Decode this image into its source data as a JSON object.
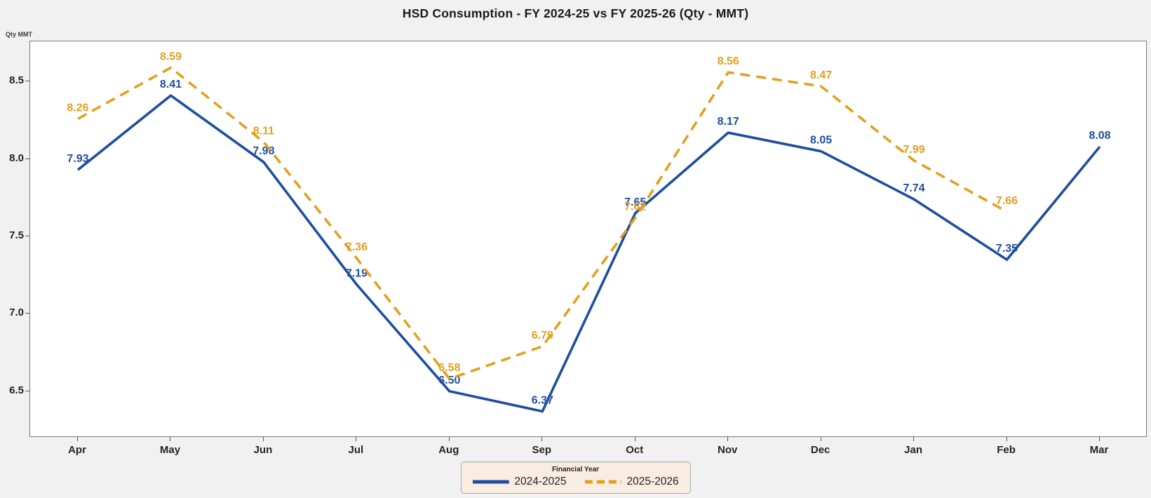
{
  "colors": {
    "background": "#f1f1f1",
    "plot_background": "#ffffff",
    "plot_border": "#7a7a7a",
    "series_2024_2025": "#1f4e9f",
    "series_2025_2026": "#e0a11f",
    "legend_background": "#f9ece1"
  },
  "chart_data": {
    "type": "line",
    "title": "HSD Consumption - FY 2024-25 vs FY 2025-26 (Qty - MMT)",
    "ylabel": "Qty MMT",
    "xlabel": "",
    "categories": [
      "Apr",
      "May",
      "Jun",
      "Jul",
      "Aug",
      "Sep",
      "Oct",
      "Nov",
      "Dec",
      "Jan",
      "Feb",
      "Mar"
    ],
    "series": [
      {
        "name": "2024-2025",
        "color": "#1f4e9f",
        "line_style": "solid",
        "values": [
          7.93,
          8.41,
          7.98,
          7.19,
          6.5,
          6.37,
          7.65,
          8.17,
          8.05,
          7.74,
          7.35,
          8.08
        ]
      },
      {
        "name": "2025-2026",
        "color": "#e0a11f",
        "line_style": "dashed",
        "values": [
          8.26,
          8.59,
          8.11,
          7.36,
          6.58,
          6.79,
          7.62,
          8.56,
          8.47,
          7.99,
          7.66,
          null
        ]
      }
    ],
    "y_ticks": [
      6.5,
      7.0,
      7.5,
      8.0,
      8.5
    ],
    "y_tick_labels": [
      "6.5",
      "7.0",
      "7.5",
      "8.0",
      "8.5"
    ],
    "ylim": [
      6.2,
      8.76
    ],
    "grid": false,
    "data_labels": true,
    "legend": {
      "title": "Financial Year",
      "position": "bottom",
      "entries": [
        "2024-2025",
        "2025-2026"
      ]
    }
  }
}
